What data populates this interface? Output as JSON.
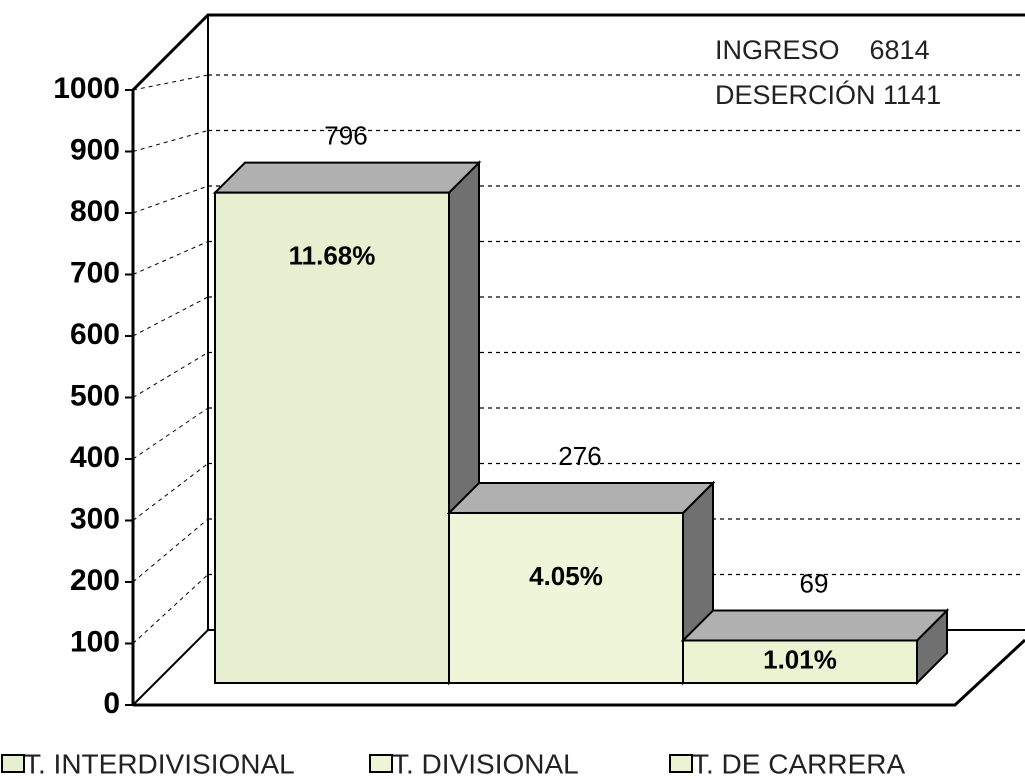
{
  "chart_data": {
    "type": "bar3d",
    "annotations": [
      "INGRESO    6814",
      "DESERCIÓN 1141"
    ],
    "series": [
      {
        "name": "T. INTERDIVISIONAL",
        "color": "#e6efcf",
        "values": [
          796
        ],
        "percent_labels": [
          "11.68%"
        ]
      },
      {
        "name": "T. DIVISIONAL",
        "color": "#eef5d8",
        "values": [
          276
        ],
        "percent_labels": [
          "4.05%"
        ]
      },
      {
        "name": "T. DE CARRERA",
        "color": "#eaf3d2",
        "values": [
          69
        ],
        "percent_labels": [
          "1.01%"
        ]
      }
    ],
    "ylim": [
      0,
      1000
    ],
    "yticks": [
      0,
      100,
      200,
      300,
      400,
      500,
      600,
      700,
      800,
      900,
      1000
    ],
    "grid": true
  }
}
